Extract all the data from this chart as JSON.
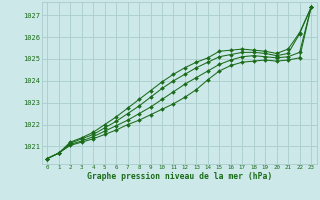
{
  "title": "Graphe pression niveau de la mer (hPa)",
  "bg_color": "#cce8e8",
  "grid_color": "#aacccc",
  "line_color": "#1a6b1a",
  "marker_color": "#1a6b1a",
  "xlim": [
    -0.5,
    23.5
  ],
  "ylim": [
    1020.2,
    1027.6
  ],
  "yticks": [
    1021,
    1022,
    1023,
    1024,
    1025,
    1026,
    1027
  ],
  "xticks": [
    0,
    1,
    2,
    3,
    4,
    5,
    6,
    7,
    8,
    9,
    10,
    11,
    12,
    13,
    14,
    15,
    16,
    17,
    18,
    19,
    20,
    21,
    22,
    23
  ],
  "series": [
    [
      1020.45,
      1020.7,
      1021.05,
      1021.2,
      1021.35,
      1021.55,
      1021.75,
      1022.0,
      1022.2,
      1022.45,
      1022.7,
      1022.95,
      1023.25,
      1023.6,
      1024.05,
      1024.45,
      1024.7,
      1024.85,
      1024.9,
      1024.95,
      1024.9,
      1024.95,
      1025.05,
      1027.35
    ],
    [
      1020.45,
      1020.7,
      1021.1,
      1021.25,
      1021.45,
      1021.7,
      1021.95,
      1022.2,
      1022.5,
      1022.8,
      1023.15,
      1023.5,
      1023.85,
      1024.15,
      1024.45,
      1024.75,
      1024.95,
      1025.1,
      1025.15,
      1025.1,
      1025.05,
      1025.1,
      1025.3,
      1027.35
    ],
    [
      1020.45,
      1020.7,
      1021.15,
      1021.35,
      1021.55,
      1021.85,
      1022.15,
      1022.5,
      1022.85,
      1023.25,
      1023.65,
      1024.0,
      1024.3,
      1024.6,
      1024.85,
      1025.1,
      1025.2,
      1025.3,
      1025.3,
      1025.25,
      1025.15,
      1025.25,
      1026.15,
      1027.35
    ],
    [
      1020.45,
      1020.7,
      1021.2,
      1021.4,
      1021.65,
      1022.0,
      1022.35,
      1022.75,
      1023.15,
      1023.55,
      1023.95,
      1024.3,
      1024.6,
      1024.85,
      1025.05,
      1025.35,
      1025.4,
      1025.45,
      1025.4,
      1025.35,
      1025.25,
      1025.45,
      1026.2,
      1027.35
    ]
  ]
}
